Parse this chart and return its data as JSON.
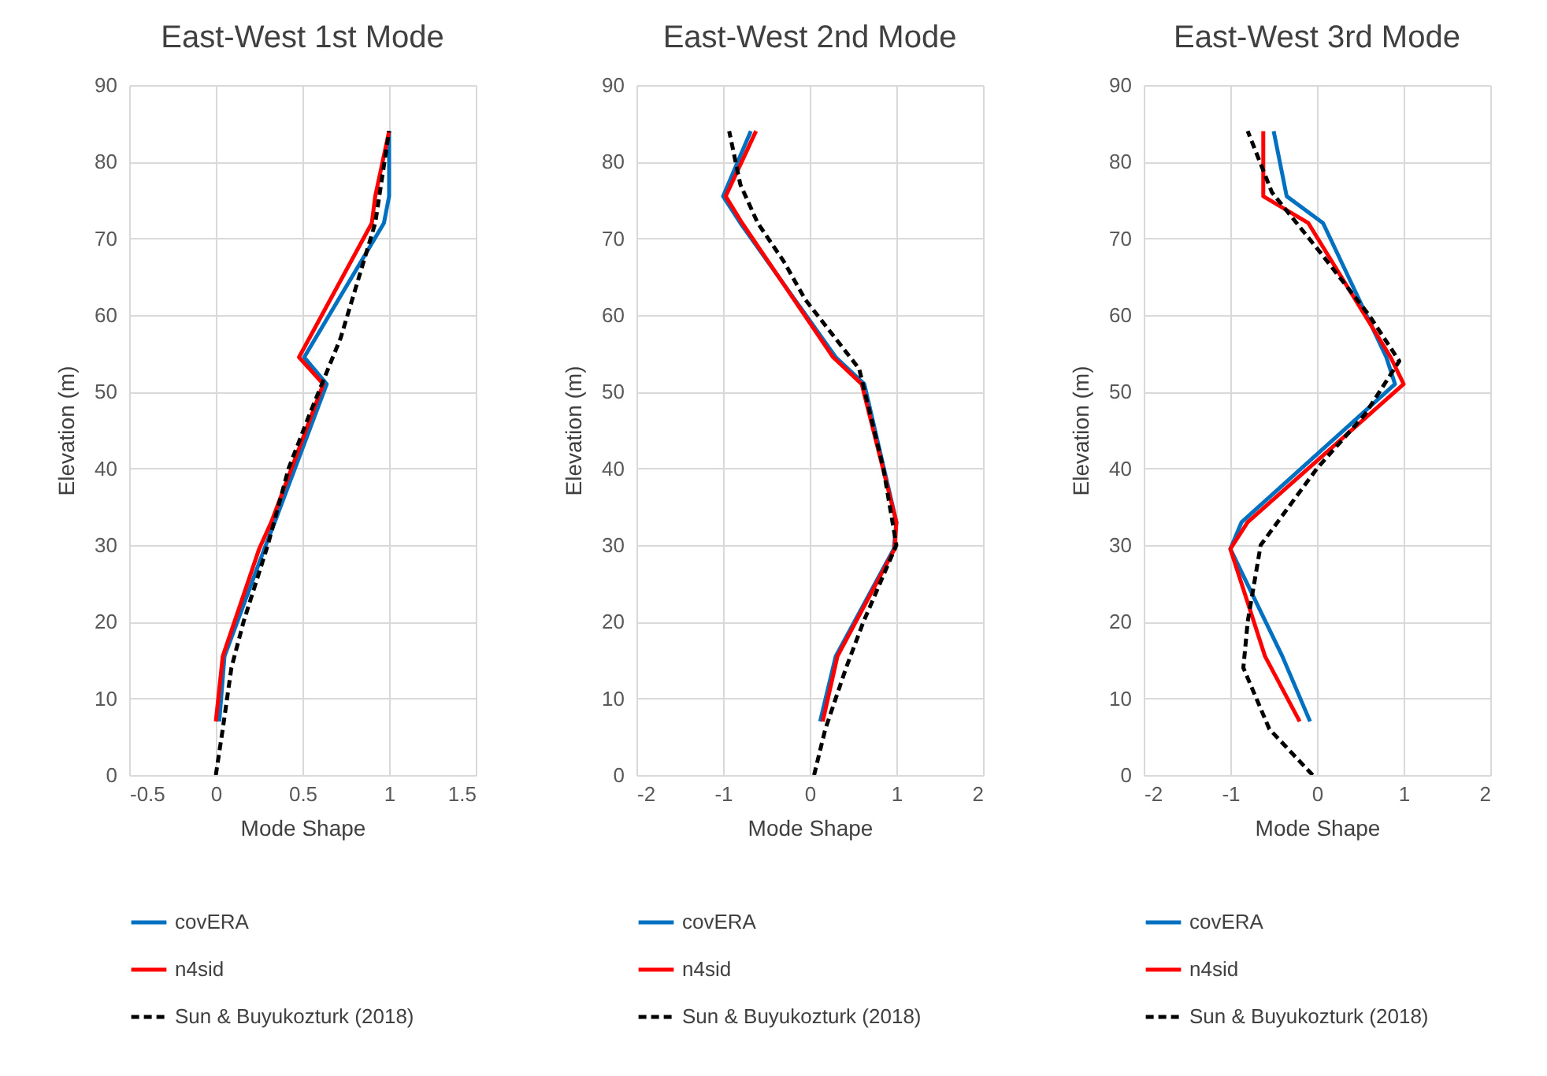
{
  "chart_data": [
    {
      "type": "line",
      "title": "East-West 1st Mode",
      "xlabel": "Mode Shape",
      "ylabel": "Elevation (m)",
      "xlim": [
        -0.5,
        1.5
      ],
      "xticks": [
        -0.5,
        0,
        0.5,
        1,
        1.5
      ],
      "ylim": [
        0,
        90
      ],
      "yticks": [
        0,
        10,
        20,
        30,
        40,
        50,
        60,
        70,
        80,
        90
      ],
      "grid": true,
      "legend": "bottom",
      "series": [
        {
          "name": "covERA",
          "color": "#0070c0",
          "line_style": "solid",
          "x": [
            0.02,
            0.05,
            0.28,
            0.34,
            0.64,
            0.51,
            0.97,
            1.0,
            1.0
          ],
          "values": [
            7,
            15.5,
            29.5,
            33,
            51,
            54.5,
            72,
            75.5,
            84
          ]
        },
        {
          "name": "n4sid",
          "color": "#ff0000",
          "line_style": "solid",
          "x": [
            0.0,
            0.04,
            0.25,
            0.32,
            0.62,
            0.48,
            0.9,
            0.92,
            1.0
          ],
          "values": [
            7,
            15.5,
            29.5,
            33,
            51,
            54.5,
            72,
            75.5,
            84
          ]
        },
        {
          "name": "Sun & Buyukozturk (2018)",
          "color": "#000000",
          "line_style": "dashed",
          "x": [
            0.0,
            0.04,
            0.09,
            0.16,
            0.3,
            0.42,
            0.54,
            0.72,
            0.92,
            1.0
          ],
          "values": [
            0,
            6,
            14,
            20,
            30,
            40,
            47,
            57,
            72,
            84
          ]
        }
      ]
    },
    {
      "type": "line",
      "title": "East-West 2nd Mode",
      "xlabel": "Mode Shape",
      "ylabel": "Elevation (m)",
      "xlim": [
        -2,
        2
      ],
      "xticks": [
        -2,
        -1,
        0,
        1,
        2
      ],
      "ylim": [
        0,
        90
      ],
      "yticks": [
        0,
        10,
        20,
        30,
        40,
        50,
        60,
        70,
        80,
        90
      ],
      "grid": true,
      "legend": "bottom",
      "series": [
        {
          "name": "covERA",
          "color": "#0070c0",
          "line_style": "solid",
          "x": [
            0.12,
            0.3,
            0.97,
            1.0,
            0.63,
            0.3,
            -0.8,
            -1.0,
            -0.68
          ],
          "values": [
            7,
            15.5,
            29.5,
            33,
            51,
            54.5,
            72,
            75.5,
            84
          ]
        },
        {
          "name": "n4sid",
          "color": "#ff0000",
          "line_style": "solid",
          "x": [
            0.15,
            0.32,
            0.98,
            1.0,
            0.6,
            0.27,
            -0.78,
            -0.97,
            -0.62
          ],
          "values": [
            7,
            15.5,
            29.5,
            33,
            51,
            54.5,
            72,
            75.5,
            84
          ]
        },
        {
          "name": "Sun & Buyukozturk (2018)",
          "color": "#000000",
          "line_style": "dashed",
          "x": [
            0.05,
            0.18,
            0.42,
            0.62,
            1.0,
            0.85,
            0.7,
            0.57,
            -0.05,
            -0.3,
            -0.6,
            -0.8,
            -0.93
          ],
          "values": [
            0,
            6,
            14,
            20,
            30,
            40,
            47,
            53,
            62,
            67,
            72,
            77,
            84
          ]
        }
      ]
    },
    {
      "type": "line",
      "title": "East-West 3rd Mode",
      "xlabel": "Mode Shape",
      "ylabel": "Elevation (m)",
      "xlim": [
        -2,
        2
      ],
      "xticks": [
        -2,
        -1,
        0,
        1,
        2
      ],
      "ylim": [
        0,
        90
      ],
      "yticks": [
        0,
        10,
        20,
        30,
        40,
        50,
        60,
        70,
        80,
        90
      ],
      "grid": true,
      "legend": "bottom",
      "series": [
        {
          "name": "covERA",
          "color": "#0070c0",
          "line_style": "solid",
          "x": [
            -0.08,
            -0.4,
            -1.0,
            -0.87,
            0.9,
            0.8,
            0.07,
            -0.35,
            -0.5
          ],
          "values": [
            7,
            15.5,
            29.5,
            33,
            51,
            54.5,
            72,
            75.5,
            84
          ]
        },
        {
          "name": "n4sid",
          "color": "#ff0000",
          "line_style": "solid",
          "x": [
            -0.2,
            -0.6,
            -1.0,
            -0.8,
            1.0,
            0.85,
            -0.1,
            -0.62,
            -0.62
          ],
          "values": [
            7,
            15.5,
            29.5,
            33,
            51,
            54.5,
            72,
            75.5,
            84
          ]
        },
        {
          "name": "Sun & Buyukozturk (2018)",
          "color": "#000000",
          "line_style": "dashed",
          "x": [
            -0.05,
            -0.55,
            -0.85,
            -0.8,
            -0.65,
            0.0,
            0.55,
            0.95,
            0.6,
            0.05,
            -0.52,
            -0.8
          ],
          "values": [
            0,
            6,
            14,
            20,
            30,
            40,
            47,
            54,
            60,
            68,
            76,
            84
          ]
        }
      ]
    }
  ]
}
